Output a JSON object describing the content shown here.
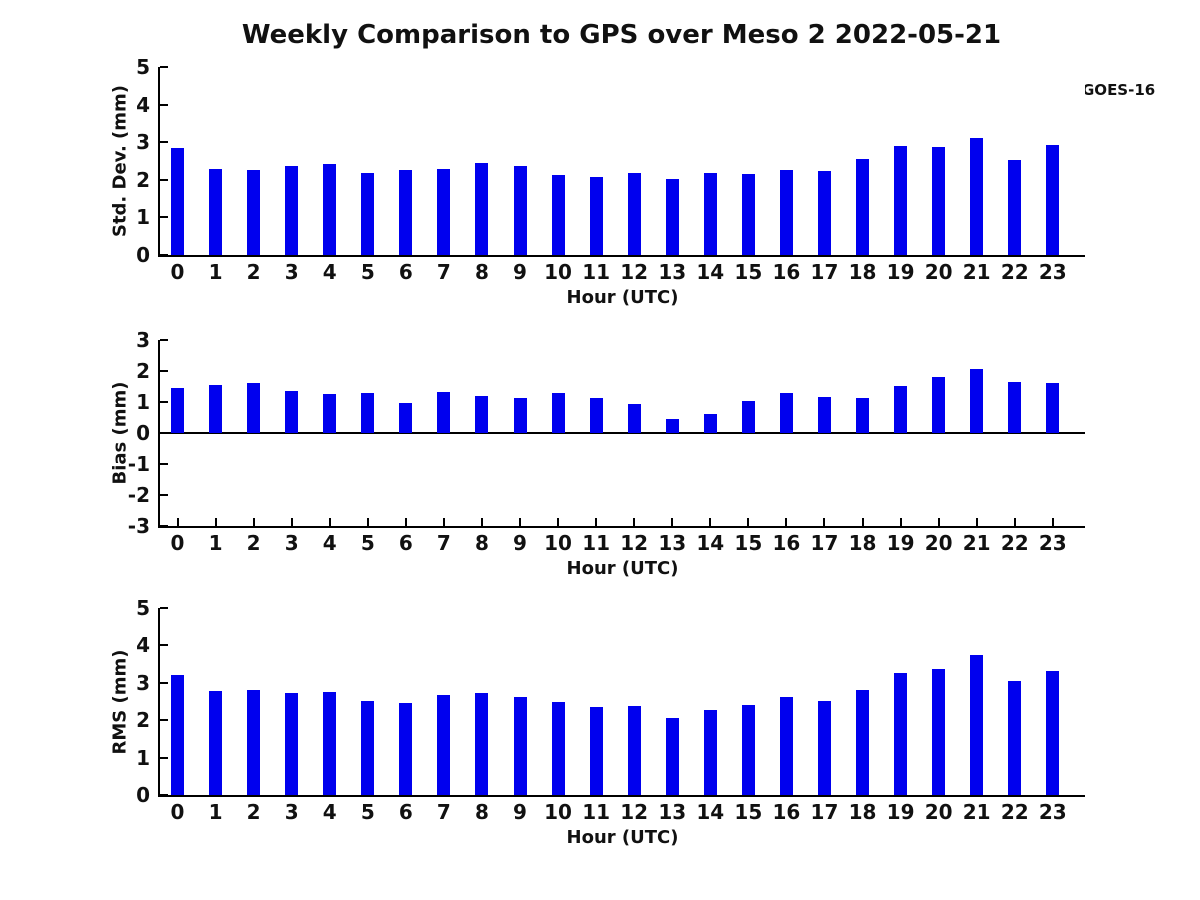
{
  "title": "Weekly Comparison to GPS over Meso 2 2022-05-21",
  "legend": {
    "label": "GOES-16",
    "color": "#0000ee"
  },
  "chart_data": [
    {
      "type": "bar",
      "panel": "std-dev",
      "title": "",
      "xlabel": "Hour (UTC)",
      "ylabel": "Std. Dev. (mm)",
      "ylim": [
        0,
        5
      ],
      "yticks": [
        5,
        4,
        3,
        2,
        1,
        0
      ],
      "grid": "off",
      "legend_position": "upper-right-outside",
      "series_name": "GOES-16",
      "bar_color": "#0000ee",
      "categories": [
        "0",
        "1",
        "2",
        "3",
        "4",
        "5",
        "6",
        "7",
        "8",
        "9",
        "10",
        "11",
        "12",
        "13",
        "14",
        "15",
        "16",
        "17",
        "18",
        "19",
        "20",
        "21",
        "22",
        "23"
      ],
      "values": [
        2.85,
        2.3,
        2.27,
        2.38,
        2.42,
        2.17,
        2.25,
        2.3,
        2.45,
        2.38,
        2.12,
        2.08,
        2.18,
        2.01,
        2.18,
        2.15,
        2.26,
        2.24,
        2.55,
        2.89,
        2.87,
        3.11,
        2.53,
        2.92
      ]
    },
    {
      "type": "bar",
      "panel": "bias",
      "title": "",
      "xlabel": "Hour (UTC)",
      "ylabel": "Bias (mm)",
      "ylim": [
        -3,
        3
      ],
      "yticks": [
        3,
        2,
        1,
        0,
        -1,
        -2,
        -3
      ],
      "grid": "off",
      "series_name": "GOES-16",
      "bar_color": "#0000ee",
      "categories": [
        "0",
        "1",
        "2",
        "3",
        "4",
        "5",
        "6",
        "7",
        "8",
        "9",
        "10",
        "11",
        "12",
        "13",
        "14",
        "15",
        "16",
        "17",
        "18",
        "19",
        "20",
        "21",
        "22",
        "23"
      ],
      "values": [
        1.45,
        1.55,
        1.62,
        1.37,
        1.27,
        1.28,
        0.97,
        1.33,
        1.18,
        1.12,
        1.28,
        1.12,
        0.95,
        0.45,
        0.62,
        1.03,
        1.28,
        1.15,
        1.12,
        1.53,
        1.82,
        2.07,
        1.65,
        1.62
      ]
    },
    {
      "type": "bar",
      "panel": "rms",
      "title": "",
      "xlabel": "Hour (UTC)",
      "ylabel": "RMS (mm)",
      "ylim": [
        0,
        5
      ],
      "yticks": [
        5,
        4,
        3,
        2,
        1,
        0
      ],
      "grid": "off",
      "series_name": "GOES-16",
      "bar_color": "#0000ee",
      "categories": [
        "0",
        "1",
        "2",
        "3",
        "4",
        "5",
        "6",
        "7",
        "8",
        "9",
        "10",
        "11",
        "12",
        "13",
        "14",
        "15",
        "16",
        "17",
        "18",
        "19",
        "20",
        "21",
        "22",
        "23"
      ],
      "values": [
        3.2,
        2.77,
        2.8,
        2.72,
        2.75,
        2.51,
        2.46,
        2.67,
        2.72,
        2.61,
        2.48,
        2.35,
        2.39,
        2.05,
        2.27,
        2.41,
        2.62,
        2.52,
        2.8,
        3.27,
        3.37,
        3.75,
        3.05,
        3.32
      ]
    }
  ]
}
